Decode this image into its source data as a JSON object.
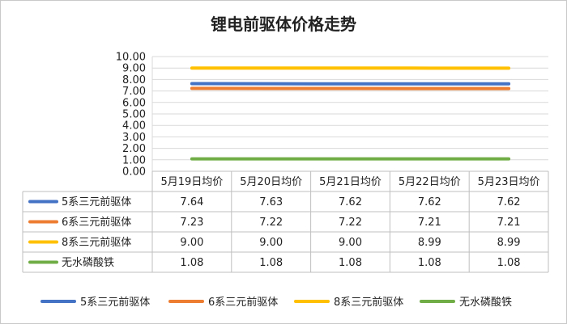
{
  "chart_data": {
    "type": "line",
    "title": "锂电前驱体价格走势",
    "categories": [
      "5月19日均价",
      "5月20日均价",
      "5月21日均价",
      "5月22日均价",
      "5月23日均价"
    ],
    "y_ticks": [
      "10.00",
      "9.00",
      "8.00",
      "7.00",
      "6.00",
      "5.00",
      "4.00",
      "3.00",
      "2.00",
      "1.00",
      "0.00"
    ],
    "ylim": [
      0,
      10
    ],
    "grid": true,
    "legend_position": "bottom",
    "data_table": true,
    "series": [
      {
        "name": "5系三元前驱体",
        "color": "#4472c4",
        "values": [
          7.64,
          7.63,
          7.62,
          7.62,
          7.62
        ],
        "labels": [
          "7.64",
          "7.63",
          "7.62",
          "7.62",
          "7.62"
        ]
      },
      {
        "name": "6系三元前驱体",
        "color": "#ed7d31",
        "values": [
          7.23,
          7.22,
          7.22,
          7.21,
          7.21
        ],
        "labels": [
          "7.23",
          "7.22",
          "7.22",
          "7.21",
          "7.21"
        ]
      },
      {
        "name": "8系三元前驱体",
        "color": "#ffc000",
        "values": [
          9.0,
          9.0,
          9.0,
          8.99,
          8.99
        ],
        "labels": [
          "9.00",
          "9.00",
          "9.00",
          "8.99",
          "8.99"
        ]
      },
      {
        "name": "无水磷酸铁",
        "color": "#70ad47",
        "values": [
          1.08,
          1.08,
          1.08,
          1.08,
          1.08
        ],
        "labels": [
          "1.08",
          "1.08",
          "1.08",
          "1.08",
          "1.08"
        ]
      }
    ]
  }
}
